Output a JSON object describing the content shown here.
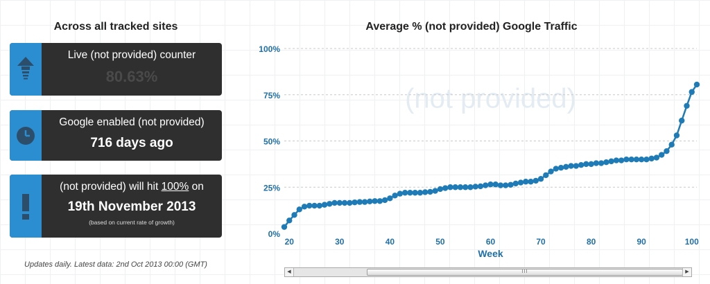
{
  "left_panel": {
    "title": "Across all tracked sites",
    "cards": [
      {
        "label": "Live (not provided) counter",
        "value": "80.63%"
      },
      {
        "label": "Google enabled (not provided)",
        "value": "716 days ago"
      },
      {
        "label_pre": "(not provided) will hit ",
        "label_em": "100%",
        "label_post": " on",
        "value": "19th November 2013",
        "note": "(based on current rate of growth)"
      }
    ],
    "footnote": "Updates daily. Latest data: 2nd Oct 2013 00:00 (GMT)"
  },
  "scrollbar": {
    "thumb_grip": "III"
  },
  "colors": {
    "accent": "#2a8ed1",
    "line": "#1f7bb5",
    "card_bg": "#2f2f2f",
    "watermark": "#e4ecf3"
  },
  "chart_data": {
    "type": "line",
    "title": "Average % (not provided) Google Traffic",
    "watermark": "(not provided)",
    "xlabel": "Week",
    "ylabel": "",
    "xlim": [
      19,
      101
    ],
    "ylim": [
      0,
      100
    ],
    "xticks": [
      20,
      30,
      40,
      50,
      60,
      70,
      80,
      90,
      100
    ],
    "yticks": [
      0,
      25,
      50,
      75,
      100
    ],
    "ytick_labels": [
      "0%",
      "25%",
      "50%",
      "75%",
      "100%"
    ],
    "grid": "horizontal dashed",
    "series": [
      {
        "x": [
          19,
          20,
          21,
          22,
          23,
          24,
          25,
          26,
          27,
          28,
          29,
          30,
          31,
          32,
          33,
          34,
          35,
          36,
          37,
          38,
          39,
          40,
          41,
          42,
          43,
          44,
          45,
          46,
          47,
          48,
          49,
          50,
          51,
          52,
          53,
          54,
          55,
          56,
          57,
          58,
          59,
          60,
          61,
          62,
          63,
          64,
          65,
          66,
          67,
          68,
          69,
          70,
          71,
          72,
          73,
          74,
          75,
          76,
          77,
          78,
          79,
          80,
          81,
          82,
          83,
          84,
          85,
          86,
          87,
          88,
          89,
          90,
          91,
          92,
          93,
          94,
          95,
          96,
          97,
          98,
          99,
          100,
          101
        ],
        "values": [
          3.5,
          7,
          10,
          13,
          14.5,
          15,
          15,
          15,
          15.5,
          16,
          16.5,
          16.5,
          16.5,
          16.5,
          16.8,
          17,
          17,
          17.3,
          17.5,
          17.5,
          18,
          19,
          20.5,
          21.5,
          22,
          22,
          22,
          22,
          22.3,
          22.5,
          23,
          24,
          24.5,
          25,
          25,
          25,
          25,
          25,
          25.3,
          25.5,
          26,
          26.5,
          26.5,
          26,
          26,
          26.3,
          27,
          27.5,
          28,
          28,
          28.5,
          29.5,
          31.5,
          33.5,
          35,
          35.5,
          36,
          36.5,
          36.5,
          37,
          37.5,
          37.5,
          38,
          38,
          38.5,
          39,
          39.5,
          39.5,
          40,
          40,
          40,
          40,
          40,
          40.5,
          41,
          42.5,
          44.5,
          48,
          53,
          61,
          69,
          76.5,
          80.5
        ]
      }
    ]
  }
}
